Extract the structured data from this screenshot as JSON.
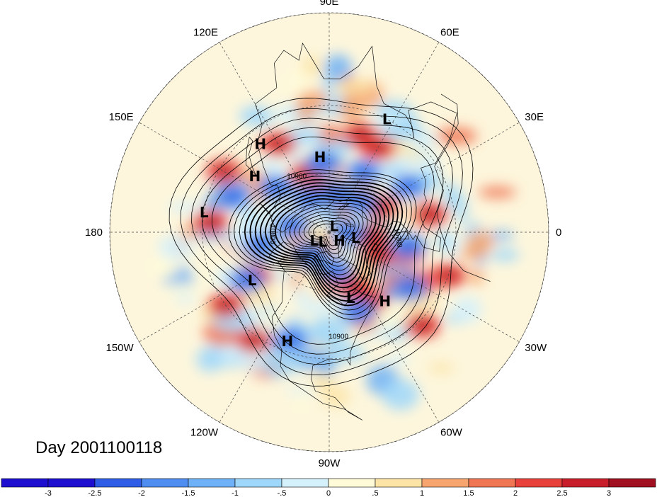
{
  "title": "Day 2001100118",
  "map": {
    "projection": "polar-stereographic-north",
    "longitude_labels": [
      {
        "text": "90E",
        "lon": 90
      },
      {
        "text": "60E",
        "lon": 60
      },
      {
        "text": "30E",
        "lon": 30
      },
      {
        "text": "0",
        "lon": 0
      },
      {
        "text": "30W",
        "lon": -30
      },
      {
        "text": "60W",
        "lon": -60
      },
      {
        "text": "90W",
        "lon": -90
      },
      {
        "text": "120W",
        "lon": -120
      },
      {
        "text": "150W",
        "lon": -150
      },
      {
        "text": "180",
        "lon": 180
      },
      {
        "text": "150E",
        "lon": 150
      },
      {
        "text": "120E",
        "lon": 120
      }
    ],
    "pressure_systems": [
      {
        "type": "L",
        "lon": 63,
        "lat": 30
      },
      {
        "type": "H",
        "lon": 97,
        "lat": 52
      },
      {
        "type": "H",
        "lon": 128,
        "lat": 36
      },
      {
        "type": "H",
        "lon": 143,
        "lat": 44
      },
      {
        "type": "L",
        "lon": 171,
        "lat": 30
      },
      {
        "type": "L",
        "lon": 50,
        "lat": 86
      },
      {
        "type": "L",
        "lon": -150,
        "lat": 81
      },
      {
        "type": "L",
        "lon": -124,
        "lat": 84
      },
      {
        "type": "H",
        "lon": -40,
        "lat": 83
      },
      {
        "type": "L",
        "lon": -12,
        "lat": 76
      },
      {
        "type": "L",
        "lon": -148,
        "lat": 45
      },
      {
        "type": "L",
        "lon": -72,
        "lat": 55
      },
      {
        "type": "H",
        "lon": -51,
        "lat": 46
      },
      {
        "type": "H",
        "lon": -111,
        "lat": 34
      }
    ],
    "contour_labels": [
      "10900",
      "10800",
      "10700",
      "10900"
    ],
    "shading": {
      "highs": [
        [
          -15,
          50
        ],
        [
          -25,
          62
        ],
        [
          60,
          42
        ],
        [
          72,
          40
        ],
        [
          90,
          70
        ],
        [
          120,
          40
        ],
        [
          150,
          32
        ],
        [
          -65,
          60
        ],
        [
          -60,
          50
        ],
        [
          -150,
          47
        ],
        [
          -145,
          30
        ],
        [
          -125,
          28
        ],
        [
          -30,
          40
        ],
        [
          10,
          40
        ],
        [
          -45,
          28
        ],
        [
          -20,
          30
        ],
        [
          25,
          60
        ],
        [
          -5,
          68
        ],
        [
          110,
          58
        ],
        [
          175,
          33
        ]
      ],
      "lows": [
        [
          80,
          70
        ],
        [
          -10,
          50
        ],
        [
          95,
          55
        ],
        [
          160,
          40
        ],
        [
          -150,
          43
        ],
        [
          -110,
          35
        ],
        [
          -70,
          48
        ],
        [
          -35,
          42
        ],
        [
          30,
          45
        ],
        [
          60,
          55
        ],
        [
          -170,
          55
        ],
        [
          140,
          55
        ],
        [
          45,
          68
        ],
        [
          -80,
          70
        ],
        [
          0,
          80
        ],
        [
          -130,
          75
        ],
        [
          120,
          70
        ],
        [
          170,
          70
        ]
      ]
    }
  },
  "colorbar": {
    "ticks": [
      "-3",
      "-2.5",
      "-2",
      "-1.5",
      "-1",
      "-.5",
      "0",
      ".5",
      "1",
      "1.5",
      "2",
      "2.5",
      "3"
    ],
    "colors": [
      "#1E0FD0",
      "#2E5CE6",
      "#4F8EF0",
      "#6FB1F6",
      "#9FD7FA",
      "#D5F1FB",
      "#FFFBD9",
      "#FCE4A6",
      "#F6A56E",
      "#F07653",
      "#E8403A",
      "#C81E2B",
      "#A01020"
    ]
  }
}
